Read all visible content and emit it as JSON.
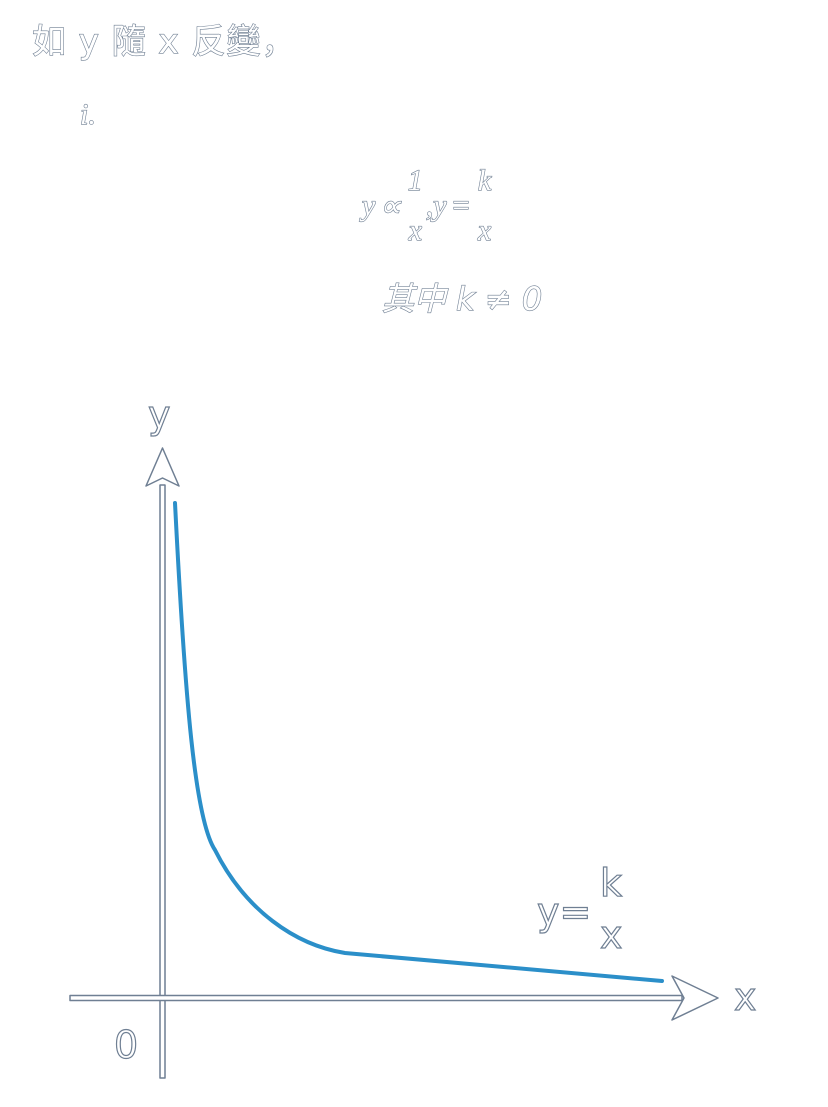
{
  "heading": "如 y 隨 x 反變，",
  "item_label": "i.",
  "formula": {
    "y1": "y",
    "propto": "∝",
    "frac1_num": "1",
    "frac1_den": "x",
    "comma": ",",
    "y2": "y",
    "equals": "=",
    "frac2_num": "k",
    "frac2_den": "x"
  },
  "condition": "其中 k ≠ 0",
  "graph": {
    "y_axis_label": "y",
    "x_axis_label": "x",
    "origin_label": "0",
    "curve_label_prefix": "y=",
    "curve_label_num": "k",
    "curve_label_den": "x",
    "curve_color": "#2b8fc9",
    "axis_color": "#6f7f93"
  }
}
